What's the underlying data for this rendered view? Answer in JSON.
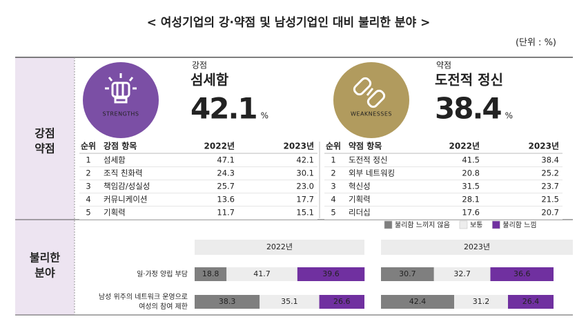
{
  "header": {
    "title": "< 여성기업의 강·약점 및 남성기업인 대비 불리한 분야 >",
    "unit": "(단위 : %)"
  },
  "section1": {
    "label": [
      "강점",
      "약점"
    ],
    "strengths": {
      "badge": "STRENGTHS",
      "kind": "강점",
      "top_item": "섬세함",
      "top_value": 42.1,
      "unit": "%",
      "color": "#7b4fa5",
      "table": {
        "header": [
          "순위",
          "강점 항목",
          "2022년",
          "2023년"
        ],
        "rows": [
          [
            "1",
            "섬세함",
            "47.1",
            "42.1"
          ],
          [
            "2",
            "조직 친화력",
            "24.3",
            "30.1"
          ],
          [
            "3",
            "책임감/성실성",
            "25.7",
            "23.0"
          ],
          [
            "4",
            "커뮤니케이션",
            "13.6",
            "17.7"
          ],
          [
            "5",
            "기획력",
            "11.7",
            "15.1"
          ]
        ],
        "highlighted_rows": [
          1,
          3
        ],
        "highlight_color": "#7030a0"
      }
    },
    "weaknesses": {
      "badge": "WEAKNESSES",
      "kind": "약점",
      "top_item": "도전적 정신",
      "top_value": 38.4,
      "unit": "%",
      "color": "#b19b5e",
      "table": {
        "header": [
          "순위",
          "약점 항목",
          "2022년",
          "2023년"
        ],
        "rows": [
          [
            "1",
            "도전적 정신",
            "41.5",
            "38.4"
          ],
          [
            "2",
            "외부 네트워킹",
            "20.8",
            "25.2"
          ],
          [
            "3",
            "혁신성",
            "31.5",
            "23.7"
          ],
          [
            "4",
            "기획력",
            "28.1",
            "21.5"
          ],
          [
            "5",
            "리더십",
            "17.6",
            "20.7"
          ]
        ],
        "highlighted_rows": [
          1,
          4
        ],
        "highlight_color": "#a8924f"
      }
    }
  },
  "section2": {
    "label": [
      "불리한",
      "분야"
    ],
    "legend": [
      {
        "name": "불리함 느끼지 않음",
        "color": "#7f7f7f"
      },
      {
        "name": "보통",
        "color": "#ededed"
      },
      {
        "name": "불리함 느낌",
        "color": "#7030a0"
      }
    ],
    "years": [
      "2022년",
      "2023년"
    ],
    "rows": [
      {
        "label": [
          "일·가정 양립 부담"
        ],
        "values": [
          [
            18.8,
            41.7,
            39.6
          ],
          [
            30.7,
            32.7,
            36.6
          ]
        ]
      },
      {
        "label": [
          "남성 위주의 네트워크 운영으로",
          "여성의 참여 제한"
        ],
        "values": [
          [
            38.3,
            35.1,
            26.6
          ],
          [
            42.4,
            31.2,
            26.4
          ]
        ]
      }
    ]
  }
}
